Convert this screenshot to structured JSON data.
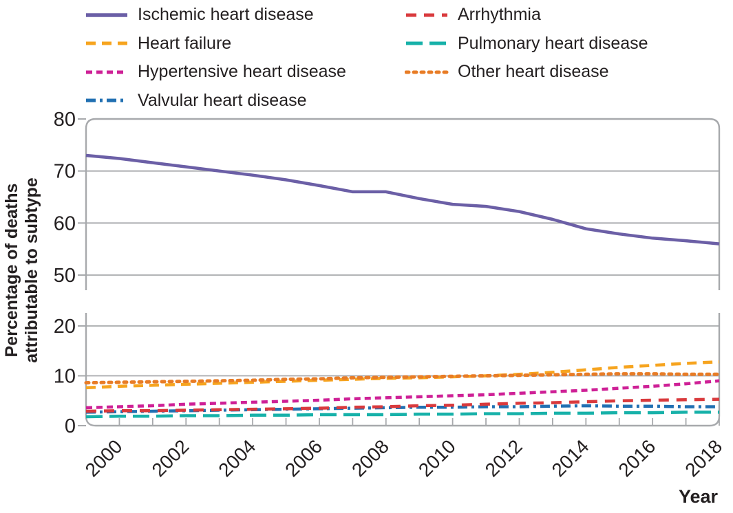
{
  "figure": {
    "y_axis_label_line1": "Percentage of deaths",
    "y_axis_label_line2": "attributable to subtype",
    "x_axis_label": "Year"
  },
  "chart_data": {
    "type": "line",
    "title": "",
    "xlabel": "Year",
    "ylabel": "Percentage of deaths attributable to subtype",
    "x": [
      1999,
      2000,
      2001,
      2002,
      2003,
      2004,
      2005,
      2006,
      2007,
      2008,
      2009,
      2010,
      2011,
      2012,
      2013,
      2014,
      2015,
      2016,
      2017,
      2018
    ],
    "x_range": [
      1999,
      2018
    ],
    "xticks": [
      2000,
      2002,
      2004,
      2006,
      2008,
      2010,
      2012,
      2014,
      2016,
      2018
    ],
    "broken_y_axis": {
      "top_panel": {
        "value_min": 47,
        "value_max": 80,
        "ticks": [
          80,
          70,
          60,
          50
        ]
      },
      "bottom_panel": {
        "value_min": 0,
        "value_max": 22.6,
        "ticks": [
          20,
          10,
          0
        ]
      }
    },
    "grid": "horizontal",
    "legend_position": "top",
    "legend_columns": [
      [
        "ischemic-heart-disease",
        "heart-failure",
        "hypertensive-heart-disease",
        "valvular-heart-disease"
      ],
      [
        "arrhythmia",
        "pulmonary-heart-disease",
        "other-heart-disease"
      ]
    ],
    "series": [
      {
        "id": "ischemic-heart-disease",
        "name": "Ischemic heart disease",
        "color": "#6b5fa6",
        "dash": [],
        "panel": "top",
        "values": [
          73.0,
          72.4,
          71.6,
          70.8,
          70.0,
          69.2,
          68.3,
          67.2,
          66.0,
          66.0,
          64.7,
          63.6,
          63.2,
          62.2,
          60.7,
          58.9,
          57.9,
          57.1,
          56.6,
          56.0
        ]
      },
      {
        "id": "heart-failure",
        "name": "Heart failure",
        "color": "#f6a41f",
        "dash": [
          14,
          9
        ],
        "panel": "bottom",
        "values": [
          7.6,
          7.9,
          8.1,
          8.3,
          8.5,
          8.7,
          8.9,
          9.1,
          9.3,
          9.5,
          9.6,
          9.8,
          10.0,
          10.3,
          10.7,
          11.2,
          11.7,
          12.1,
          12.5,
          12.8
        ]
      },
      {
        "id": "hypertensive-heart-disease",
        "name": "Hypertensive heart disease",
        "color": "#ce2096",
        "dash": [
          9,
          6
        ],
        "panel": "bottom",
        "values": [
          3.6,
          3.8,
          4.0,
          4.3,
          4.5,
          4.7,
          4.9,
          5.1,
          5.4,
          5.6,
          5.8,
          6.0,
          6.2,
          6.5,
          6.8,
          7.1,
          7.5,
          7.9,
          8.4,
          9.0
        ]
      },
      {
        "id": "valvular-heart-disease",
        "name": "Valvular heart disease",
        "color": "#2170b2",
        "dash": [
          14,
          6,
          4,
          6
        ],
        "panel": "bottom",
        "values": [
          2.7,
          2.8,
          2.9,
          3.0,
          3.1,
          3.2,
          3.3,
          3.4,
          3.5,
          3.6,
          3.7,
          3.7,
          3.8,
          3.8,
          3.9,
          4.0,
          3.9,
          3.9,
          3.8,
          3.8
        ]
      },
      {
        "id": "arrhythmia",
        "name": "Arrhythmia",
        "color": "#d93a3d",
        "dash": [
          15,
          11
        ],
        "panel": "bottom",
        "values": [
          2.9,
          3.0,
          3.0,
          3.1,
          3.2,
          3.3,
          3.4,
          3.5,
          3.7,
          3.8,
          4.0,
          4.1,
          4.3,
          4.5,
          4.6,
          4.8,
          5.0,
          5.1,
          5.2,
          5.3
        ]
      },
      {
        "id": "pulmonary-heart-disease",
        "name": "Pulmonary heart disease",
        "color": "#17b1a9",
        "dash": [
          24,
          10
        ],
        "panel": "bottom",
        "values": [
          1.8,
          1.9,
          1.9,
          2.0,
          2.0,
          2.1,
          2.1,
          2.2,
          2.2,
          2.2,
          2.3,
          2.3,
          2.4,
          2.4,
          2.5,
          2.5,
          2.6,
          2.6,
          2.7,
          2.7
        ]
      },
      {
        "id": "other-heart-disease",
        "name": "Other heart disease",
        "color": "#e87c26",
        "dash": [
          4,
          7
        ],
        "panel": "bottom",
        "values": [
          8.6,
          8.7,
          8.8,
          8.9,
          9.0,
          9.1,
          9.3,
          9.4,
          9.6,
          9.7,
          9.8,
          9.9,
          10.0,
          10.1,
          10.2,
          10.3,
          10.4,
          10.4,
          10.3,
          10.3
        ]
      }
    ],
    "style": {
      "axis_color": "#a7a9ac",
      "text_color": "#231f20",
      "background": "#ffffff"
    }
  }
}
